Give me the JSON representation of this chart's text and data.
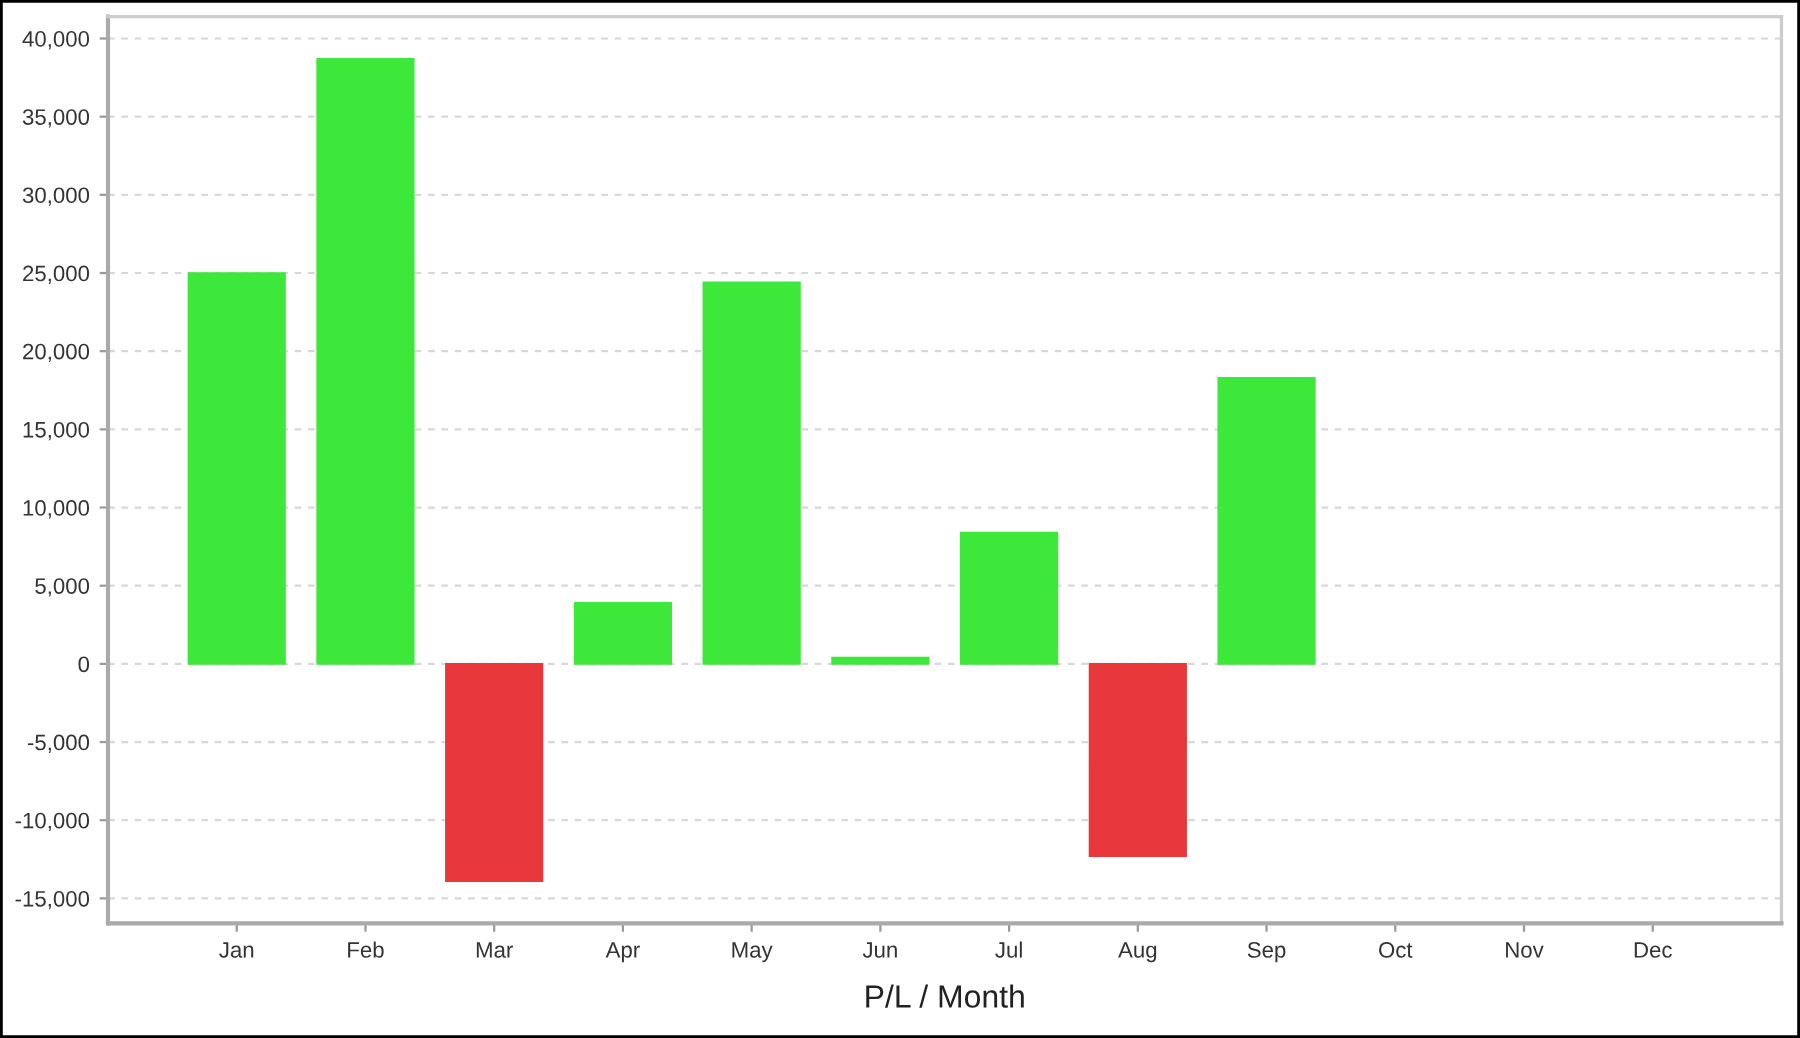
{
  "chart_data": {
    "type": "bar",
    "xlabel": "P/L / Month",
    "categories": [
      "Jan",
      "Feb",
      "Mar",
      "Apr",
      "May",
      "Jun",
      "Jul",
      "Aug",
      "Sep",
      "Oct",
      "Nov",
      "Dec"
    ],
    "values": [
      25000,
      38700,
      -13900,
      3900,
      24400,
      400,
      8400,
      -12300,
      18300,
      null,
      null,
      null
    ],
    "colors": [
      "#3de83a",
      "#3de83a",
      "#e8383c",
      "#3de83a",
      "#3de83a",
      "#3de83a",
      "#3de83a",
      "#e8383c",
      "#3de83a",
      "#3de83a",
      "#3de83a",
      "#3de83a"
    ],
    "ylim": [
      -16600,
      41400
    ],
    "yticks": [
      {
        "value": -15000,
        "label": "-15,000"
      },
      {
        "value": -10000,
        "label": "-10,000"
      },
      {
        "value": -5000,
        "label": "-5,000"
      },
      0,
      {
        "value": 5000,
        "label": "5,000"
      },
      {
        "value": 10000,
        "label": "10,000"
      },
      {
        "value": 15000,
        "label": "15,000"
      },
      {
        "value": 20000,
        "label": "20,000"
      },
      {
        "value": 25000,
        "label": "25,000"
      },
      {
        "value": 30000,
        "label": "30,000"
      },
      {
        "value": 35000,
        "label": "35,000"
      },
      {
        "value": 40000,
        "label": "40,000"
      }
    ],
    "grid": "y",
    "legend": false
  }
}
